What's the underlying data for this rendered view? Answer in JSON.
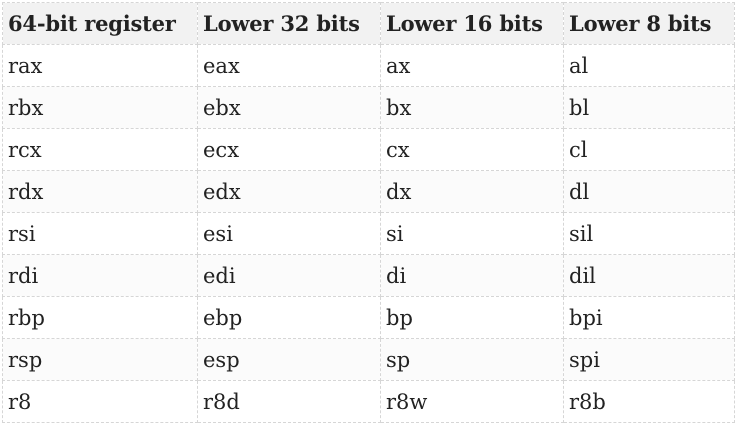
{
  "table": {
    "headers": [
      "64-bit register",
      "Lower 32 bits",
      "Lower 16 bits",
      "Lower 8 bits"
    ],
    "rows": [
      [
        "rax",
        "eax",
        "ax",
        "al"
      ],
      [
        "rbx",
        "ebx",
        "bx",
        "bl"
      ],
      [
        "rcx",
        "ecx",
        "cx",
        "cl"
      ],
      [
        "rdx",
        "edx",
        "dx",
        "dl"
      ],
      [
        "rsi",
        "esi",
        "si",
        "sil"
      ],
      [
        "rdi",
        "edi",
        "di",
        "dil"
      ],
      [
        "rbp",
        "ebp",
        "bp",
        "bpi"
      ],
      [
        "rsp",
        "esp",
        "sp",
        "spi"
      ],
      [
        "r8",
        "r8d",
        "r8w",
        "r8b"
      ]
    ]
  }
}
